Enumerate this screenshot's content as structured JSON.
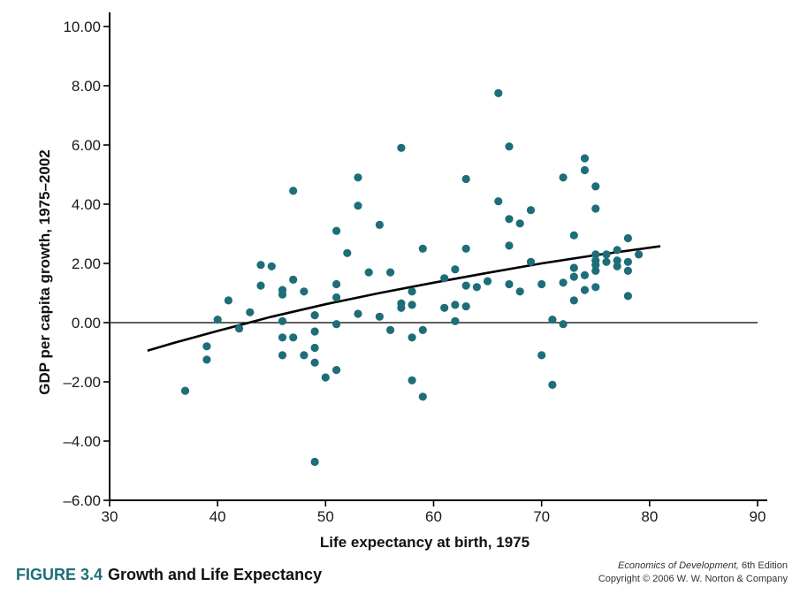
{
  "figure": {
    "label": "FIGURE 3.4",
    "title": "Growth and Life Expectancy",
    "credit_book": "Economics of Development,",
    "credit_edition": " 6th Edition",
    "credit_copyright": "Copyright © 2006 W. W. Norton & Company"
  },
  "colors": {
    "points": "#1d6e78",
    "fit_line": "#000000",
    "axes": "#000000",
    "caption_accent": "#1d6e78"
  },
  "chart_data": {
    "type": "scatter",
    "title": "",
    "xlabel": "Life expectancy at birth, 1975",
    "ylabel": "GDP per capita growth, 1975–2002",
    "xlim": [
      30,
      90
    ],
    "ylim": [
      -6,
      10
    ],
    "x_ticks": [
      30,
      40,
      50,
      60,
      70,
      80,
      90
    ],
    "y_ticks": [
      -6,
      -4,
      -2,
      0,
      2,
      4,
      6,
      8,
      10
    ],
    "y_tick_labels": [
      "–6.00",
      "–4.00",
      "–2.00",
      "0.00",
      "2.00",
      "4.00",
      "6.00",
      "8.00",
      "10.00"
    ],
    "zero_line": true,
    "grid": false,
    "series": [
      {
        "points": [
          [
            37,
            -2.3
          ],
          [
            39,
            -0.8
          ],
          [
            39,
            -1.25
          ],
          [
            40,
            0.1
          ],
          [
            41,
            0.75
          ],
          [
            42,
            -0.2
          ],
          [
            43,
            0.35
          ],
          [
            44,
            1.95
          ],
          [
            44,
            1.25
          ],
          [
            45,
            1.9
          ],
          [
            46,
            1.1
          ],
          [
            46,
            0.95
          ],
          [
            46,
            0.05
          ],
          [
            46,
            -0.5
          ],
          [
            46,
            -1.1
          ],
          [
            47,
            4.45
          ],
          [
            47,
            1.45
          ],
          [
            47,
            -0.5
          ],
          [
            48,
            1.05
          ],
          [
            48,
            -1.1
          ],
          [
            49,
            0.25
          ],
          [
            49,
            -0.3
          ],
          [
            49,
            -0.85
          ],
          [
            49,
            -1.35
          ],
          [
            49,
            -4.7
          ],
          [
            50,
            -1.85
          ],
          [
            51,
            3.1
          ],
          [
            51,
            1.3
          ],
          [
            51,
            0.85
          ],
          [
            51,
            -0.05
          ],
          [
            51,
            -1.6
          ],
          [
            52,
            2.35
          ],
          [
            53,
            4.9
          ],
          [
            53,
            3.95
          ],
          [
            53,
            0.3
          ],
          [
            54,
            1.7
          ],
          [
            55,
            3.3
          ],
          [
            55,
            0.2
          ],
          [
            56,
            1.7
          ],
          [
            56,
            -0.25
          ],
          [
            57,
            5.9
          ],
          [
            57,
            0.65
          ],
          [
            57,
            0.5
          ],
          [
            58,
            1.05
          ],
          [
            58,
            0.6
          ],
          [
            58,
            -0.5
          ],
          [
            58,
            -1.95
          ],
          [
            59,
            2.5
          ],
          [
            59,
            -0.25
          ],
          [
            59,
            -2.5
          ],
          [
            61,
            1.5
          ],
          [
            61,
            0.5
          ],
          [
            62,
            1.8
          ],
          [
            62,
            0.6
          ],
          [
            62,
            0.05
          ],
          [
            63,
            4.85
          ],
          [
            63,
            2.5
          ],
          [
            63,
            1.25
          ],
          [
            63,
            0.55
          ],
          [
            64,
            1.2
          ],
          [
            65,
            1.4
          ],
          [
            66,
            7.75
          ],
          [
            66,
            4.1
          ],
          [
            67,
            5.95
          ],
          [
            67,
            3.5
          ],
          [
            67,
            2.6
          ],
          [
            67,
            1.3
          ],
          [
            68,
            3.35
          ],
          [
            68,
            1.05
          ],
          [
            69,
            3.8
          ],
          [
            69,
            2.05
          ],
          [
            70,
            1.3
          ],
          [
            70,
            -1.1
          ],
          [
            71,
            0.1
          ],
          [
            71,
            -2.1
          ],
          [
            72,
            4.9
          ],
          [
            72,
            1.35
          ],
          [
            72,
            -0.05
          ],
          [
            73,
            2.95
          ],
          [
            73,
            1.85
          ],
          [
            73,
            1.55
          ],
          [
            73,
            0.75
          ],
          [
            74,
            5.55
          ],
          [
            74,
            5.15
          ],
          [
            74,
            1.6
          ],
          [
            74,
            1.1
          ],
          [
            75,
            4.6
          ],
          [
            75,
            3.85
          ],
          [
            75,
            2.3
          ],
          [
            75,
            2.1
          ],
          [
            75,
            1.95
          ],
          [
            75,
            1.75
          ],
          [
            75,
            1.2
          ],
          [
            76,
            2.3
          ],
          [
            76,
            2.05
          ],
          [
            77,
            2.45
          ],
          [
            77,
            2.1
          ],
          [
            77,
            1.9
          ],
          [
            78,
            2.85
          ],
          [
            78,
            2.05
          ],
          [
            78,
            1.75
          ],
          [
            78,
            0.9
          ],
          [
            79,
            2.3
          ]
        ]
      }
    ],
    "fit_curve": [
      [
        33.5,
        -0.95
      ],
      [
        36,
        -0.68
      ],
      [
        40,
        -0.28
      ],
      [
        45,
        0.2
      ],
      [
        50,
        0.62
      ],
      [
        55,
        1.0
      ],
      [
        60,
        1.35
      ],
      [
        65,
        1.68
      ],
      [
        70,
        2.0
      ],
      [
        75,
        2.28
      ],
      [
        81,
        2.58
      ]
    ]
  }
}
